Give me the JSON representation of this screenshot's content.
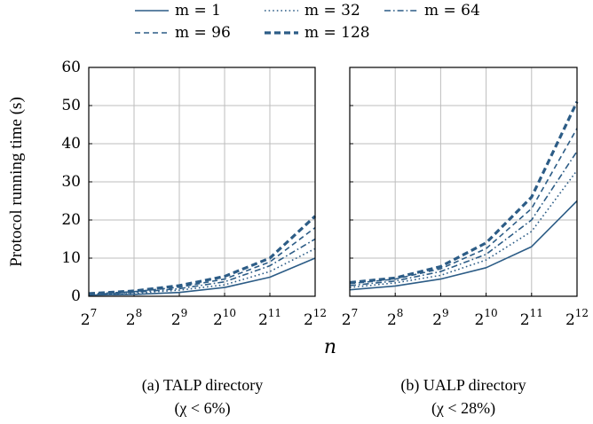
{
  "colors": {
    "series": "#2c5c86",
    "grid": "#bdbdbd"
  },
  "legend": {
    "placement": "top",
    "entries": [
      {
        "label": "m = 1",
        "dash": "solid"
      },
      {
        "label": "m = 32",
        "dash": "dotted"
      },
      {
        "label": "m = 64",
        "dash": "dashdot"
      },
      {
        "label": "m = 96",
        "dash": "dashed"
      },
      {
        "label": "m = 128",
        "dash": "dashed-thick"
      }
    ]
  },
  "ylabel": "Protocol running time (s)",
  "xlabel": "n",
  "chart_data": [
    {
      "type": "line",
      "caption_line1": "(a) TALP directory",
      "caption_line2": "(χ < 6%)",
      "x": [
        7,
        8,
        9,
        10,
        11,
        12
      ],
      "x_tick_labels": [
        {
          "base": "2",
          "exp": "7"
        },
        {
          "base": "2",
          "exp": "8"
        },
        {
          "base": "2",
          "exp": "9"
        },
        {
          "base": "2",
          "exp": "10"
        },
        {
          "base": "2",
          "exp": "11"
        },
        {
          "base": "2",
          "exp": "12"
        }
      ],
      "ylim": [
        0,
        60
      ],
      "y_ticks": [
        "0",
        "10",
        "20",
        "30",
        "40",
        "50",
        "60"
      ],
      "grid": true,
      "series": [
        {
          "name": "m = 1",
          "values": [
            0.3,
            0.5,
            1.0,
            2.3,
            5.0,
            10.0
          ]
        },
        {
          "name": "m = 32",
          "values": [
            0.4,
            0.8,
            1.6,
            3.0,
            6.5,
            12.5
          ]
        },
        {
          "name": "m = 64",
          "values": [
            0.5,
            1.0,
            2.0,
            3.8,
            8.0,
            15.0
          ]
        },
        {
          "name": "m = 96",
          "values": [
            0.6,
            1.2,
            2.4,
            4.5,
            9.0,
            18.0
          ]
        },
        {
          "name": "m = 128",
          "values": [
            0.7,
            1.4,
            2.8,
            5.2,
            10.0,
            21.0
          ]
        }
      ]
    },
    {
      "type": "line",
      "caption_line1": "(b) UALP directory",
      "caption_line2": "(χ < 28%)",
      "x": [
        7,
        8,
        9,
        10,
        11,
        12
      ],
      "x_tick_labels": [
        {
          "base": "2",
          "exp": "7"
        },
        {
          "base": "2",
          "exp": "8"
        },
        {
          "base": "2",
          "exp": "9"
        },
        {
          "base": "2",
          "exp": "10"
        },
        {
          "base": "2",
          "exp": "11"
        },
        {
          "base": "2",
          "exp": "12"
        }
      ],
      "ylim": [
        0,
        60
      ],
      "y_ticks": [
        "0",
        "10",
        "20",
        "30",
        "40",
        "50",
        "60"
      ],
      "grid": true,
      "series": [
        {
          "name": "m = 1",
          "values": [
            1.7,
            2.7,
            4.5,
            7.5,
            13.0,
            25.0
          ]
        },
        {
          "name": "m = 32",
          "values": [
            2.3,
            3.5,
            5.5,
            9.5,
            17.0,
            33.0
          ]
        },
        {
          "name": "m = 64",
          "values": [
            2.8,
            4.0,
            6.5,
            11.0,
            20.0,
            38.0
          ]
        },
        {
          "name": "m = 96",
          "values": [
            3.3,
            4.5,
            7.2,
            12.5,
            23.0,
            44.0
          ]
        },
        {
          "name": "m = 128",
          "values": [
            3.6,
            4.8,
            7.8,
            14.0,
            26.0,
            51.0
          ]
        }
      ]
    }
  ]
}
